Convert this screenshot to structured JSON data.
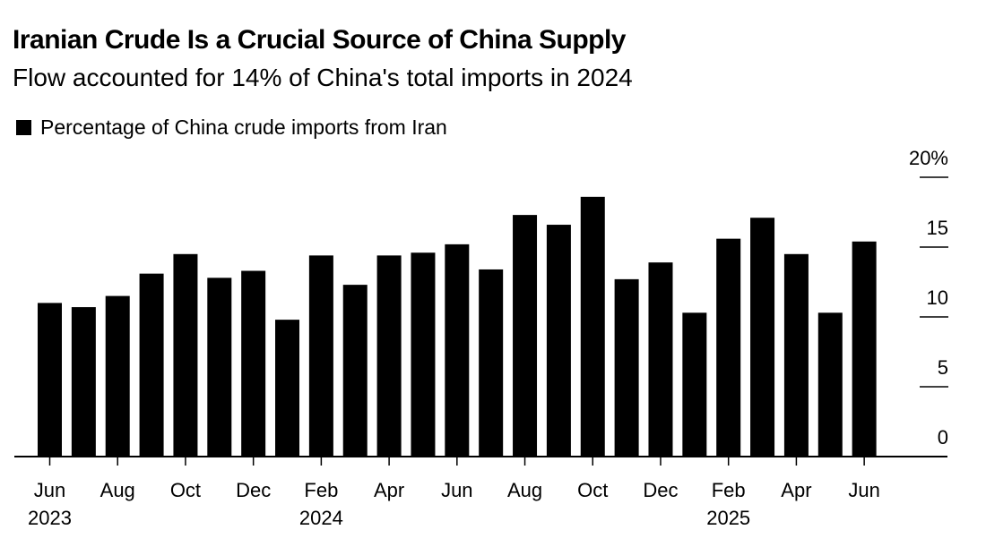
{
  "chart_data": {
    "type": "bar",
    "title": "Iranian Crude Is a Crucial Source of China Supply",
    "subtitle": "Flow accounted for 14% of China's total imports in 2024",
    "legend": [
      "Percentage of China crude imports from Iran"
    ],
    "legend_placement": "top-left",
    "series": [
      {
        "name": "Percentage of China crude imports from Iran",
        "color": "#000000",
        "values": [
          11.0,
          10.7,
          11.5,
          13.1,
          14.5,
          12.8,
          13.3,
          9.8,
          14.4,
          12.3,
          14.4,
          14.6,
          15.2,
          13.4,
          17.3,
          16.6,
          18.6,
          12.7,
          13.9,
          10.3,
          15.6,
          17.1,
          14.5,
          10.3,
          15.4
        ]
      }
    ],
    "categories": [
      "Jun 2023",
      "Jul 2023",
      "Aug 2023",
      "Sep 2023",
      "Oct 2023",
      "Nov 2023",
      "Dec 2023",
      "Jan 2024",
      "Feb 2024",
      "Mar 2024",
      "Apr 2024",
      "May 2024",
      "Jun 2024",
      "Jul 2024",
      "Aug 2024",
      "Sep 2024",
      "Oct 2024",
      "Nov 2024",
      "Dec 2024",
      "Jan 2025",
      "Feb 2025",
      "Mar 2025",
      "Apr 2025",
      "May 2025",
      "Jun 2025"
    ],
    "x_ticks": [
      {
        "index": 0,
        "month": "Jun",
        "year": "2023"
      },
      {
        "index": 2,
        "month": "Aug",
        "year": ""
      },
      {
        "index": 4,
        "month": "Oct",
        "year": ""
      },
      {
        "index": 6,
        "month": "Dec",
        "year": ""
      },
      {
        "index": 8,
        "month": "Feb",
        "year": "2024"
      },
      {
        "index": 10,
        "month": "Apr",
        "year": ""
      },
      {
        "index": 12,
        "month": "Jun",
        "year": ""
      },
      {
        "index": 14,
        "month": "Aug",
        "year": ""
      },
      {
        "index": 16,
        "month": "Oct",
        "year": ""
      },
      {
        "index": 18,
        "month": "Dec",
        "year": ""
      },
      {
        "index": 20,
        "month": "Feb",
        "year": "2025"
      },
      {
        "index": 22,
        "month": "Apr",
        "year": ""
      },
      {
        "index": 24,
        "month": "Jun",
        "year": ""
      }
    ],
    "y_ticks": [
      {
        "value": 0,
        "label": "0"
      },
      {
        "value": 5,
        "label": "5"
      },
      {
        "value": 10,
        "label": "10"
      },
      {
        "value": 15,
        "label": "15"
      },
      {
        "value": 20,
        "label": "20%"
      }
    ],
    "ylim": [
      0,
      20
    ],
    "y_axis_side": "right",
    "grid": false,
    "xlabel": "",
    "ylabel": ""
  }
}
